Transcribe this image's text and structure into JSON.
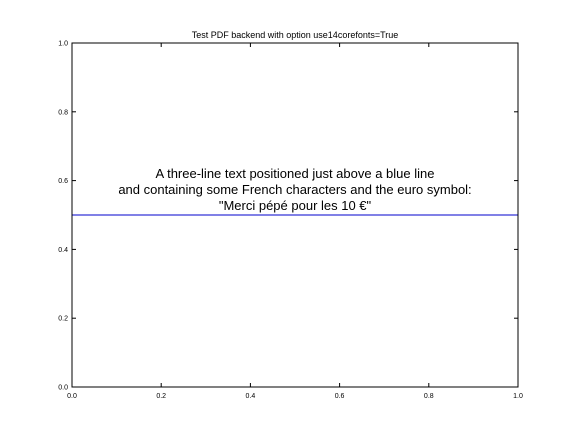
{
  "chart_data": {
    "type": "line",
    "title": "Test PDF backend with option use14corefonts=True",
    "xlabel": "",
    "ylabel": "",
    "xlim": [
      0.0,
      1.0
    ],
    "ylim": [
      0.0,
      1.0
    ],
    "grid": false,
    "x_ticks": [
      0.0,
      0.2,
      0.4,
      0.6,
      0.8,
      1.0
    ],
    "x_tick_labels": [
      "0.0",
      "0.2",
      "0.4",
      "0.6",
      "0.8",
      "1.0"
    ],
    "y_ticks": [
      0.0,
      0.2,
      0.4,
      0.6,
      0.8,
      1.0
    ],
    "y_tick_labels": [
      "0.0",
      "0.2",
      "0.4",
      "0.6",
      "0.8",
      "1.0"
    ],
    "series": [
      {
        "color": "#0000cc",
        "x": [
          0.0,
          1.0
        ],
        "y": [
          0.5,
          0.5
        ]
      }
    ],
    "annotation": {
      "x": 0.5,
      "y": 0.5,
      "lines": [
        "A three-line text positioned just above a blue line",
        "and containing some French characters and the euro symbol:",
        "\"Merci pépé pour les 10 €\""
      ]
    }
  }
}
